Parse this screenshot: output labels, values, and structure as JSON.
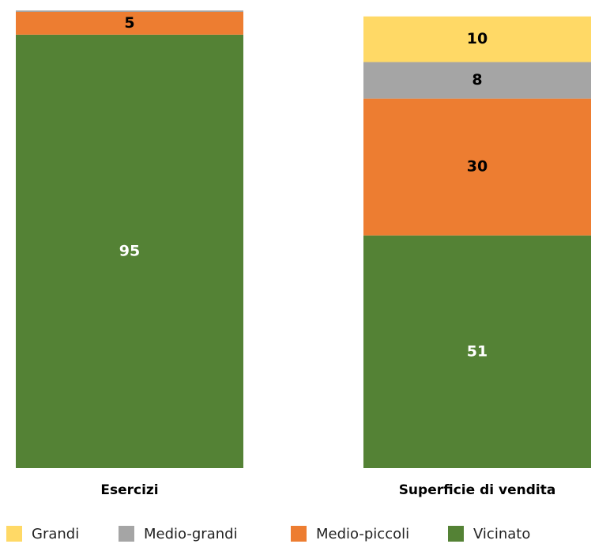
{
  "chart_data": {
    "type": "stacked_bar",
    "categories": [
      "Esercizi",
      "Superficie di vendita"
    ],
    "series": [
      {
        "name": "Vicinato",
        "color": "#548235",
        "label_color": "#ffffff",
        "values": [
          95,
          51
        ]
      },
      {
        "name": "Medio-piccoli",
        "color": "#ed7d31",
        "label_color": "#000000",
        "values": [
          5,
          30
        ]
      },
      {
        "name": "Medio-grandi",
        "color": "#a5a5a5",
        "label_color": "#000000",
        "values": [
          0.3,
          8
        ]
      },
      {
        "name": "Grandi",
        "color": "#ffd966",
        "label_color": "#000000",
        "values": [
          0,
          10
        ]
      }
    ],
    "ylim": [
      0,
      100
    ],
    "legend": "bottom"
  }
}
